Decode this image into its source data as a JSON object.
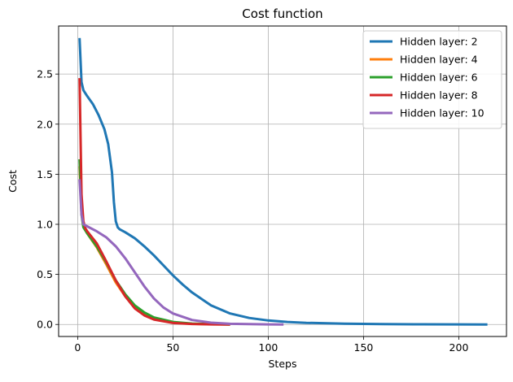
{
  "chart_data": {
    "type": "line",
    "title": "Cost function",
    "xlabel": "Steps",
    "ylabel": "Cost",
    "xlim": [
      -10,
      225
    ],
    "ylim": [
      -0.12,
      2.98
    ],
    "xticks": [
      0,
      50,
      100,
      150,
      200
    ],
    "yticks": [
      0.0,
      0.5,
      1.0,
      1.5,
      2.0,
      2.5
    ],
    "xtick_labels": [
      "0",
      "50",
      "100",
      "150",
      "200"
    ],
    "ytick_labels": [
      "0.0",
      "0.5",
      "1.0",
      "1.5",
      "2.0",
      "2.5"
    ],
    "grid": true,
    "legend_position": "top-right",
    "series": [
      {
        "name": "Hidden layer: 2",
        "color": "#1f77b4",
        "x": [
          1,
          2,
          3,
          5,
          8,
          11,
          14,
          16,
          18,
          19,
          20,
          21,
          22,
          25,
          30,
          35,
          40,
          45,
          50,
          55,
          60,
          70,
          80,
          90,
          100,
          110,
          120,
          140,
          160,
          180,
          200,
          215
        ],
        "y": [
          2.86,
          2.42,
          2.34,
          2.28,
          2.2,
          2.09,
          1.95,
          1.8,
          1.52,
          1.22,
          1.03,
          0.97,
          0.95,
          0.92,
          0.86,
          0.78,
          0.69,
          0.59,
          0.49,
          0.4,
          0.32,
          0.19,
          0.11,
          0.065,
          0.04,
          0.025,
          0.016,
          0.008,
          0.004,
          0.002,
          0.001,
          0.0
        ]
      },
      {
        "name": "Hidden layer: 4",
        "color": "#ff7f0e",
        "x": [
          1,
          2,
          3,
          5,
          10,
          15,
          20,
          25,
          30,
          35,
          40,
          50,
          60,
          70,
          80
        ],
        "y": [
          1.58,
          1.12,
          0.98,
          0.91,
          0.77,
          0.6,
          0.42,
          0.28,
          0.17,
          0.1,
          0.06,
          0.02,
          0.007,
          0.002,
          0.0
        ]
      },
      {
        "name": "Hidden layer: 6",
        "color": "#2ca02c",
        "x": [
          1,
          2,
          3,
          5,
          10,
          15,
          20,
          25,
          30,
          35,
          40,
          50,
          60,
          70,
          80
        ],
        "y": [
          1.65,
          1.1,
          0.97,
          0.91,
          0.78,
          0.62,
          0.44,
          0.3,
          0.19,
          0.12,
          0.07,
          0.025,
          0.009,
          0.003,
          0.0
        ]
      },
      {
        "name": "Hidden layer: 8",
        "color": "#d62728",
        "x": [
          1,
          2,
          3,
          4,
          5,
          10,
          15,
          20,
          25,
          30,
          35,
          40,
          50,
          60,
          70,
          80
        ],
        "y": [
          2.46,
          1.3,
          1.03,
          0.96,
          0.93,
          0.81,
          0.63,
          0.44,
          0.28,
          0.16,
          0.09,
          0.05,
          0.015,
          0.005,
          0.001,
          0.0
        ]
      },
      {
        "name": "Hidden layer: 10",
        "color": "#9467bd",
        "x": [
          1,
          2,
          3,
          5,
          10,
          15,
          20,
          25,
          30,
          35,
          40,
          45,
          50,
          60,
          70,
          80,
          90,
          100,
          108
        ],
        "y": [
          1.45,
          1.1,
          1.0,
          0.98,
          0.93,
          0.87,
          0.78,
          0.66,
          0.52,
          0.38,
          0.26,
          0.17,
          0.11,
          0.045,
          0.018,
          0.007,
          0.003,
          0.001,
          0.0
        ]
      }
    ]
  }
}
